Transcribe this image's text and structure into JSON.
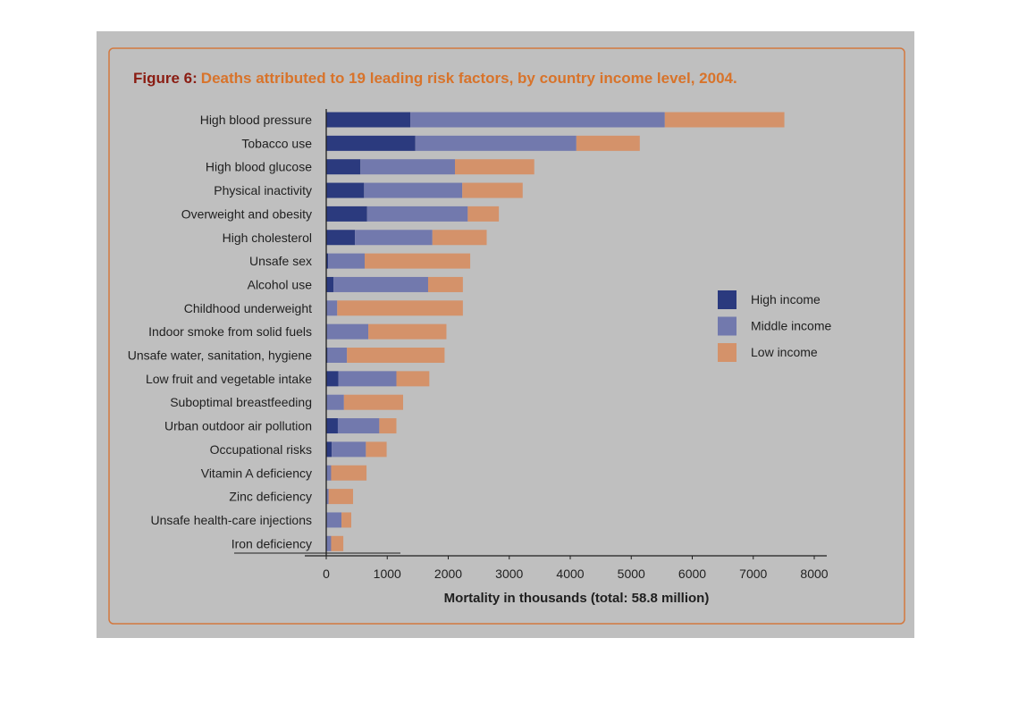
{
  "chart_data": {
    "type": "bar",
    "orientation": "horizontal",
    "stacked": true,
    "title_prefix": "Figure 6:",
    "title": "Deaths attributed to 19 leading risk factors, by country income level, 2004.",
    "xlabel": "Mortality in thousands (total: 58.8 million)",
    "ylabel": "",
    "xlim": [
      0,
      8000
    ],
    "xticks": [
      0,
      1000,
      2000,
      3000,
      4000,
      5000,
      6000,
      7000,
      8000
    ],
    "grid": false,
    "legend_position": "right",
    "categories": [
      "High blood pressure",
      "Tobacco use",
      "High blood glucose",
      "Physical inactivity",
      "Overweight and obesity",
      "High cholesterol",
      "Unsafe sex",
      "Alcohol use",
      "Childhood underweight",
      "Indoor smoke from solid fuels",
      "Unsafe water, sanitation, hygiene",
      "Low fruit and vegetable intake",
      "Suboptimal breastfeeding",
      "Urban outdoor air pollution",
      "Occupational risks",
      "Vitamin A deficiency",
      "Zinc deficiency",
      "Unsafe health-care injections",
      "Iron deficiency"
    ],
    "series": [
      {
        "name": "High income",
        "color": "#2b3a7e",
        "values": [
          1380,
          1460,
          560,
          620,
          670,
          470,
          30,
          120,
          0,
          0,
          20,
          200,
          0,
          190,
          90,
          0,
          0,
          0,
          0
        ]
      },
      {
        "name": "Middle income",
        "color": "#7279ad",
        "values": [
          4170,
          2640,
          1550,
          1610,
          1650,
          1270,
          600,
          1550,
          180,
          690,
          320,
          950,
          290,
          680,
          560,
          80,
          40,
          250,
          80
        ]
      },
      {
        "name": "Low income",
        "color": "#d4926a",
        "values": [
          1960,
          1040,
          1300,
          990,
          510,
          890,
          1730,
          570,
          2060,
          1280,
          1600,
          540,
          970,
          280,
          340,
          580,
          400,
          160,
          200
        ]
      }
    ]
  },
  "colors": {
    "title_prefix": "#8a1c12",
    "title": "#d8732a",
    "frame_border": "#d3783f",
    "page_background": "#bfbfbf"
  }
}
